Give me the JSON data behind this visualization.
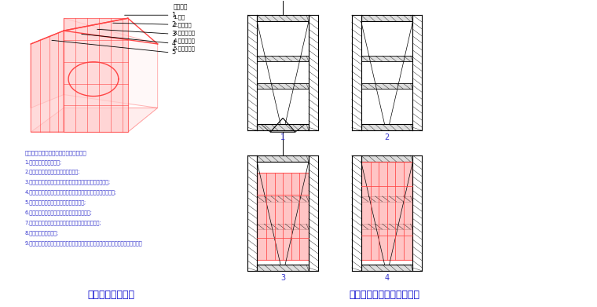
{
  "bg_color": "#ffffff",
  "title_left": "电梯井筒模示意图",
  "title_right": "电梯井移动操作平台示意图",
  "title_color": "#0000cc",
  "title_fontsize": 9,
  "draw_color": "#000000",
  "red_color": "#ff4444",
  "blue_text_color": "#3333cc",
  "legend_title": "图示说明",
  "legend_items": [
    "1.面板",
    "2.三角桁架",
    "3.方钢楞小管",
    "4.方钢楞大管",
    "5.螺杆及分模"
  ],
  "steps_title": "电梯井操作平台及筒模配套使用工艺步骤",
  "steps": [
    "1.搭设组装操作平台位置;",
    "2.安装筒模四角，刷脱模剂，准备吊装;",
    "3.通过预留孔用卷扬机提升电梯井操作平台，调节高度及水平;",
    "4.穿孔插件钢箍，支模板，加入穿墙螺杆，预留孔洞孔，移入灌模;",
    "5.先开角模四角，上部穿墙螺栓，现浇硷体;",
    "6.拆除墙箍，依靠套模拆角，使筒模脱离砼墙体;",
    "7.拆模后清洗角，清理筒模，刷脱模剂，准备开火吊装;",
    "8.起升电梯井操作平台;",
    "9.电梯井操作平台支撑支脚自动弹入预留孔，调节平台高度及水平，进入下一层施工。"
  ],
  "diagram_numbers": [
    "1",
    "2",
    "3",
    "4"
  ]
}
